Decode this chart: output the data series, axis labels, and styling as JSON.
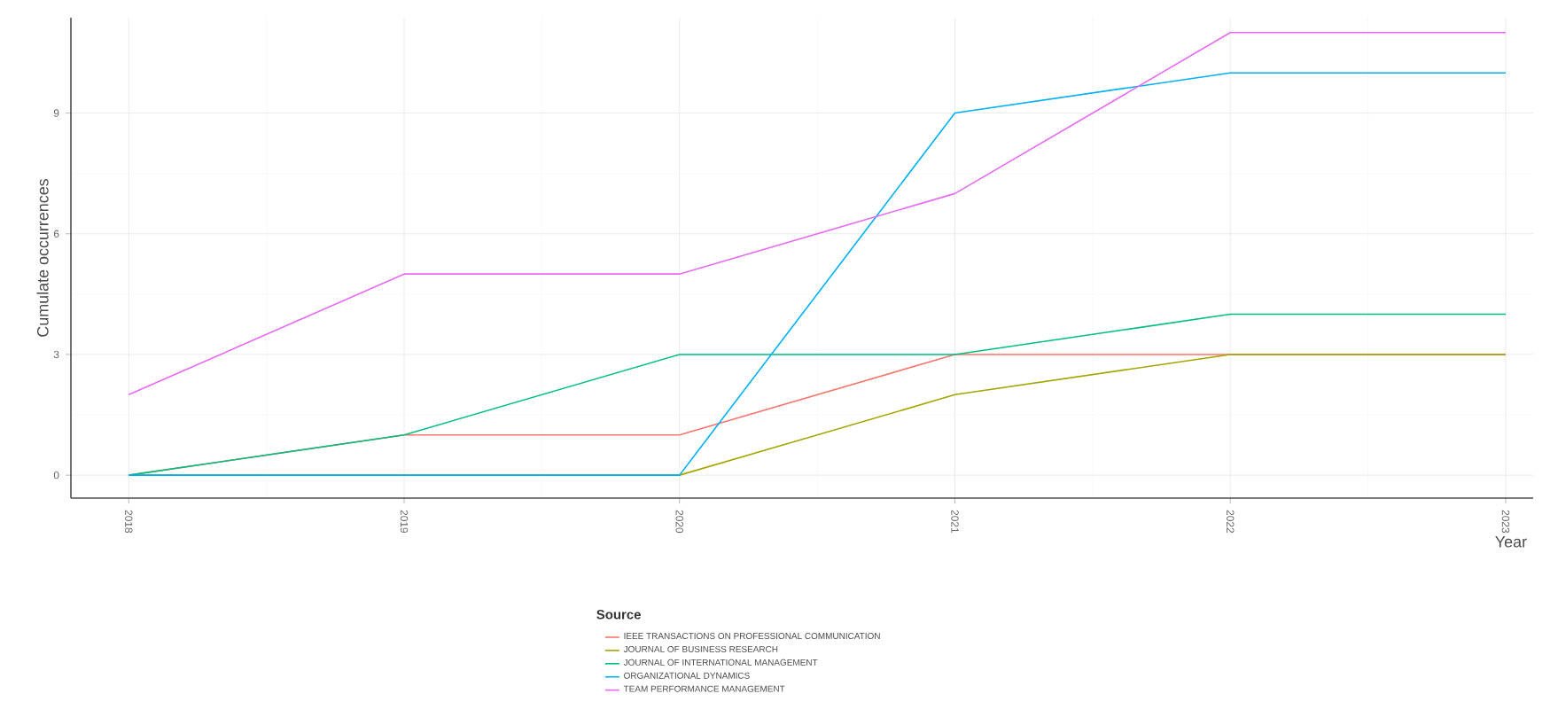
{
  "chart_data": {
    "type": "line",
    "xlabel": "Year",
    "ylabel": "Cumulate occurrences",
    "legend_title": "Source",
    "x": [
      2018,
      2019,
      2020,
      2021,
      2022,
      2023
    ],
    "series": [
      {
        "name": "IEEE TRANSACTIONS ON PROFESSIONAL COMMUNICATION",
        "color": "#f8766d",
        "values": [
          0,
          1,
          1,
          3,
          3,
          3
        ]
      },
      {
        "name": "JOURNAL OF BUSINESS RESEARCH",
        "color": "#a3a500",
        "values": [
          0,
          0,
          0,
          2,
          3,
          3
        ]
      },
      {
        "name": "JOURNAL OF INTERNATIONAL MANAGEMENT",
        "color": "#00bf7d",
        "values": [
          0,
          1,
          3,
          3,
          4,
          4
        ]
      },
      {
        "name": "ORGANIZATIONAL DYNAMICS",
        "color": "#00b0f6",
        "values": [
          0,
          0,
          0,
          9,
          10,
          10
        ]
      },
      {
        "name": "TEAM PERFORMANCE MANAGEMENT",
        "color": "#e76bf3",
        "values": [
          2,
          5,
          5,
          7,
          11,
          11
        ]
      }
    ],
    "xlim": [
      2017.79,
      2023.1
    ],
    "ylim": [
      -0.57,
      11.37
    ],
    "xticks": [
      2018,
      2019,
      2020,
      2021,
      2022,
      2023
    ],
    "yticks": [
      0,
      3,
      6,
      9
    ],
    "grid": true,
    "legend": "bottom",
    "marker": "none",
    "line_style": "solid"
  }
}
